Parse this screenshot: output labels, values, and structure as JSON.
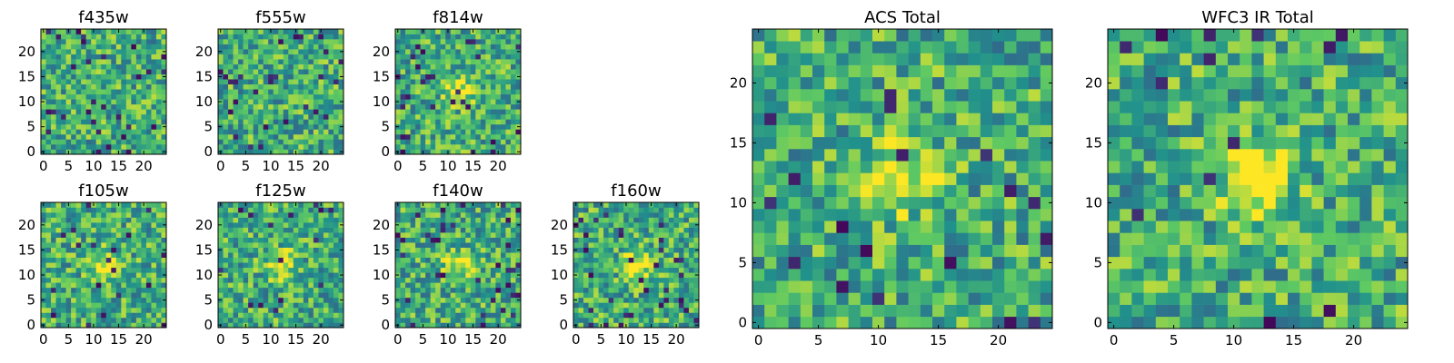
{
  "figure": {
    "colormap": [
      "#440154",
      "#3b528b",
      "#21918c",
      "#5ec962",
      "#fde725"
    ]
  },
  "chart_data": [
    {
      "type": "heatmap",
      "title": "f435w",
      "xlim": [
        0,
        25
      ],
      "ylim": [
        0,
        25
      ],
      "xticks": [
        "0",
        "5",
        "10",
        "15",
        "20"
      ],
      "yticks": [
        "0",
        "5",
        "10",
        "15",
        "20"
      ],
      "grid_size": 25,
      "source_peak": 0.0,
      "noise_seed": 11,
      "dark_fraction": 0.04
    },
    {
      "type": "heatmap",
      "title": "f555w",
      "xlim": [
        0,
        25
      ],
      "ylim": [
        0,
        25
      ],
      "xticks": [
        "0",
        "5",
        "10",
        "15",
        "20"
      ],
      "yticks": [
        "0",
        "5",
        "10",
        "15",
        "20"
      ],
      "grid_size": 25,
      "source_peak": 0.0,
      "noise_seed": 23,
      "dark_fraction": 0.04
    },
    {
      "type": "heatmap",
      "title": "f814w",
      "xlim": [
        0,
        25
      ],
      "ylim": [
        0,
        25
      ],
      "xticks": [
        "0",
        "5",
        "10",
        "15",
        "20"
      ],
      "yticks": [
        "0",
        "5",
        "10",
        "15",
        "20"
      ],
      "grid_size": 25,
      "source_peak": 0.35,
      "noise_seed": 37,
      "dark_fraction": 0.05
    },
    {
      "type": "heatmap",
      "title": "f105w",
      "xlim": [
        0,
        25
      ],
      "ylim": [
        0,
        25
      ],
      "xticks": [
        "0",
        "5",
        "10",
        "15",
        "20"
      ],
      "yticks": [
        "0",
        "5",
        "10",
        "15",
        "20"
      ],
      "grid_size": 25,
      "source_peak": 0.3,
      "noise_seed": 41,
      "dark_fraction": 0.03
    },
    {
      "type": "heatmap",
      "title": "f125w",
      "xlim": [
        0,
        25
      ],
      "ylim": [
        0,
        25
      ],
      "xticks": [
        "0",
        "5",
        "10",
        "15",
        "20"
      ],
      "yticks": [
        "0",
        "5",
        "10",
        "15",
        "20"
      ],
      "grid_size": 25,
      "source_peak": 0.35,
      "noise_seed": 53,
      "dark_fraction": 0.03
    },
    {
      "type": "heatmap",
      "title": "f140w",
      "xlim": [
        0,
        25
      ],
      "ylim": [
        0,
        25
      ],
      "xticks": [
        "0",
        "5",
        "10",
        "15",
        "20"
      ],
      "yticks": [
        "0",
        "5",
        "10",
        "15",
        "20"
      ],
      "grid_size": 25,
      "source_peak": 0.35,
      "noise_seed": 67,
      "dark_fraction": 0.05
    },
    {
      "type": "heatmap",
      "title": "f160w",
      "xlim": [
        0,
        25
      ],
      "ylim": [
        0,
        25
      ],
      "xticks": [
        "0",
        "5",
        "10",
        "15",
        "20"
      ],
      "yticks": [
        "0",
        "5",
        "10",
        "15",
        "20"
      ],
      "grid_size": 25,
      "source_peak": 0.35,
      "noise_seed": 79,
      "dark_fraction": 0.06
    },
    {
      "type": "heatmap",
      "title": "ACS Total",
      "xlim": [
        0,
        25
      ],
      "ylim": [
        0,
        25
      ],
      "xticks": [
        "0",
        "5",
        "10",
        "15",
        "20"
      ],
      "yticks": [
        "0",
        "5",
        "10",
        "15",
        "20"
      ],
      "grid_size": 25,
      "source_peak": 0.4,
      "noise_seed": 83,
      "dark_fraction": 0.03
    },
    {
      "type": "heatmap",
      "title": "WFC3 IR Total",
      "xlim": [
        0,
        25
      ],
      "ylim": [
        0,
        25
      ],
      "xticks": [
        "0",
        "5",
        "10",
        "15",
        "20"
      ],
      "yticks": [
        "0",
        "5",
        "10",
        "15",
        "20"
      ],
      "grid_size": 25,
      "source_peak": 0.55,
      "noise_seed": 97,
      "dark_fraction": 0.03
    }
  ]
}
